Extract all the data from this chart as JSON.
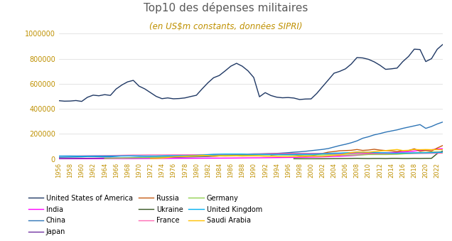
{
  "title": "Top10 des dépenses militaires",
  "subtitle": "(en US$m constants, données SIPRI)",
  "title_color": "#595959",
  "subtitle_color": "#BF9000",
  "years": [
    1956,
    1957,
    1958,
    1959,
    1960,
    1961,
    1962,
    1963,
    1964,
    1965,
    1966,
    1967,
    1968,
    1969,
    1970,
    1971,
    1972,
    1973,
    1974,
    1975,
    1976,
    1977,
    1978,
    1979,
    1980,
    1981,
    1982,
    1983,
    1984,
    1985,
    1986,
    1987,
    1988,
    1989,
    1990,
    1991,
    1992,
    1993,
    1994,
    1995,
    1996,
    1997,
    1998,
    1999,
    2000,
    2001,
    2002,
    2003,
    2004,
    2005,
    2006,
    2007,
    2008,
    2009,
    2010,
    2011,
    2012,
    2013,
    2014,
    2015,
    2016,
    2017,
    2018,
    2019,
    2020,
    2021,
    2022,
    2023
  ],
  "series": {
    "United States of America": {
      "color": "#1F3864",
      "data": [
        466000,
        462000,
        463000,
        467000,
        460000,
        493000,
        510000,
        505000,
        514000,
        508000,
        559000,
        591000,
        616000,
        628000,
        582000,
        560000,
        530000,
        500000,
        482000,
        488000,
        481000,
        483000,
        488000,
        499000,
        509000,
        560000,
        608000,
        649000,
        667000,
        703000,
        741000,
        764000,
        741000,
        704000,
        651000,
        497000,
        530000,
        507000,
        494000,
        489000,
        491000,
        487000,
        475000,
        479000,
        480000,
        524000,
        578000,
        631000,
        685000,
        700000,
        720000,
        758000,
        810000,
        807000,
        796000,
        776000,
        749000,
        716000,
        720000,
        726000,
        778000,
        819000,
        877000,
        874000,
        778000,
        801000,
        876000,
        916000
      ]
    },
    "India": {
      "color": "#FF00FF",
      "data": [
        2000,
        2000,
        2200,
        2300,
        2400,
        2500,
        2800,
        2800,
        3200,
        3500,
        3600,
        3900,
        4000,
        3900,
        4200,
        4300,
        4500,
        4700,
        5000,
        5200,
        5500,
        5800,
        6000,
        6200,
        6500,
        6800,
        7000,
        7200,
        7500,
        7800,
        8000,
        8500,
        9000,
        9500,
        9800,
        10000,
        10500,
        11000,
        11500,
        12000,
        12500,
        13000,
        14000,
        14500,
        15000,
        16000,
        17500,
        19000,
        21000,
        23000,
        25000,
        27000,
        30000,
        36000,
        40000,
        44000,
        46000,
        48000,
        51000,
        54000,
        57000,
        60000,
        64000,
        70000,
        72000,
        74000,
        80000,
        83000
      ]
    },
    "China": {
      "color": "#2E75B6",
      "data": [
        14000,
        15000,
        16000,
        17000,
        18000,
        20000,
        20000,
        19000,
        18000,
        18000,
        22000,
        26000,
        26000,
        24000,
        22000,
        22000,
        22000,
        23000,
        24000,
        24000,
        24000,
        24000,
        24000,
        26000,
        27000,
        27000,
        27000,
        28000,
        30000,
        32000,
        33000,
        35000,
        38000,
        40000,
        41000,
        41000,
        43000,
        44000,
        45000,
        48000,
        51000,
        55000,
        58000,
        62000,
        67000,
        72000,
        77000,
        84000,
        96000,
        108000,
        118000,
        130000,
        145000,
        166000,
        178000,
        193000,
        203000,
        215000,
        224000,
        233000,
        245000,
        255000,
        265000,
        275000,
        245000,
        260000,
        280000,
        296000
      ]
    },
    "Japan": {
      "color": "#7030A0",
      "data": [
        4000,
        4500,
        5000,
        5500,
        6000,
        6200,
        6500,
        7000,
        7500,
        8000,
        8500,
        9000,
        9500,
        10000,
        11000,
        11500,
        12000,
        13000,
        13500,
        14000,
        14500,
        15000,
        16000,
        17000,
        18000,
        19000,
        20000,
        22000,
        25000,
        27000,
        30000,
        32000,
        33000,
        34000,
        36000,
        38000,
        40000,
        42000,
        43000,
        44000,
        44000,
        44000,
        44000,
        44000,
        44000,
        44000,
        44000,
        44000,
        44000,
        44000,
        44000,
        44000,
        46000,
        47000,
        48000,
        48000,
        47000,
        47000,
        46000,
        46000,
        47000,
        47000,
        48000,
        48000,
        49000,
        54000,
        56000,
        56000
      ]
    },
    "Russia": {
      "color": "#C55A11",
      "data": [
        null,
        null,
        null,
        null,
        null,
        null,
        null,
        null,
        null,
        null,
        null,
        null,
        null,
        null,
        null,
        null,
        null,
        null,
        null,
        null,
        null,
        null,
        null,
        null,
        null,
        null,
        null,
        null,
        null,
        null,
        null,
        null,
        null,
        null,
        null,
        null,
        null,
        30000,
        35000,
        40000,
        38000,
        36000,
        25000,
        22000,
        25000,
        35000,
        45000,
        55000,
        60000,
        66000,
        68000,
        70000,
        76000,
        69000,
        72000,
        78000,
        72000,
        68000,
        65000,
        60000,
        68000,
        68000,
        82000,
        62000,
        68000,
        64000,
        88000,
        109000
      ]
    },
    "Ukraine": {
      "color": "#375623",
      "data": [
        null,
        null,
        null,
        null,
        null,
        null,
        null,
        null,
        null,
        null,
        null,
        null,
        null,
        null,
        null,
        null,
        null,
        null,
        null,
        null,
        null,
        null,
        null,
        null,
        null,
        null,
        null,
        null,
        null,
        null,
        null,
        null,
        null,
        null,
        null,
        null,
        null,
        null,
        null,
        null,
        null,
        3000,
        2500,
        2000,
        1900,
        2200,
        2600,
        3100,
        3800,
        4200,
        4500,
        5000,
        5800,
        4800,
        4200,
        4800,
        4900,
        4000,
        5800,
        5900,
        4600,
        4700,
        5800,
        5000,
        5800,
        6000,
        44000,
        65000
      ]
    },
    "France": {
      "color": "#FF69B4",
      "data": [
        24000,
        24500,
        25000,
        25000,
        26000,
        26500,
        27000,
        27500,
        28000,
        28500,
        29000,
        30000,
        31000,
        32000,
        32000,
        32500,
        33000,
        33000,
        33000,
        33500,
        34000,
        34000,
        34000,
        34500,
        34500,
        35000,
        35500,
        36000,
        37000,
        38000,
        38500,
        39000,
        39500,
        40000,
        41000,
        42000,
        42000,
        42000,
        42000,
        42500,
        43000,
        43000,
        43000,
        43000,
        42000,
        43000,
        43000,
        43500,
        44000,
        44000,
        44000,
        45000,
        45000,
        44000,
        44000,
        43500,
        43500,
        43000,
        43500,
        43500,
        44000,
        44500,
        44500,
        45000,
        45500,
        46000,
        46500,
        47000
      ]
    },
    "Germany": {
      "color": "#92D050",
      "data": [
        null,
        null,
        null,
        null,
        null,
        null,
        null,
        null,
        5000,
        6000,
        7000,
        8000,
        9000,
        10000,
        11000,
        12000,
        13000,
        14000,
        15000,
        16000,
        18000,
        19000,
        20000,
        21000,
        22000,
        23000,
        25000,
        26000,
        28000,
        29000,
        30000,
        30000,
        31000,
        32000,
        32000,
        33000,
        33000,
        33000,
        33000,
        32000,
        32000,
        32000,
        32000,
        32000,
        32000,
        33000,
        33000,
        34000,
        33500,
        33000,
        32500,
        32000,
        33000,
        33000,
        36000,
        36000,
        36000,
        36000,
        37000,
        38000,
        41000,
        44000,
        47000,
        49000,
        52000,
        56000,
        55000,
        52000
      ]
    },
    "United Kingdom": {
      "color": "#00B0F0",
      "data": [
        24000,
        24000,
        24000,
        23500,
        23000,
        23500,
        24000,
        24000,
        24000,
        24000,
        24000,
        24500,
        25000,
        25000,
        25000,
        24000,
        24000,
        24000,
        25000,
        26000,
        26000,
        27000,
        27000,
        28000,
        30000,
        33000,
        35000,
        38000,
        39000,
        40000,
        40000,
        40000,
        40000,
        38000,
        38000,
        38000,
        37000,
        36000,
        36000,
        36000,
        36000,
        36000,
        37000,
        37000,
        37000,
        39000,
        42000,
        45000,
        47000,
        48000,
        50000,
        52000,
        54000,
        55000,
        54000,
        53000,
        51000,
        50000,
        47000,
        47000,
        48000,
        48000,
        49000,
        50000,
        50000,
        51000,
        52000,
        55000
      ]
    },
    "Saudi Arabia": {
      "color": "#FFC000",
      "data": [
        null,
        null,
        null,
        null,
        null,
        null,
        null,
        null,
        null,
        null,
        null,
        null,
        null,
        null,
        null,
        null,
        3000,
        4000,
        8000,
        12000,
        18000,
        20000,
        22000,
        25000,
        26000,
        30000,
        28000,
        22000,
        25000,
        24000,
        25000,
        26000,
        24000,
        25000,
        25000,
        25000,
        22000,
        21000,
        20000,
        19000,
        19000,
        21000,
        21000,
        23000,
        23000,
        22000,
        22000,
        25000,
        29000,
        32000,
        42000,
        52000,
        57000,
        56000,
        54000,
        60000,
        64000,
        68000,
        72000,
        76000,
        68000,
        70000,
        76000,
        75000,
        76000,
        75000,
        75000,
        75000
      ]
    }
  },
  "legend_order": [
    "United States of America",
    "India",
    "China",
    "Japan",
    "Russia",
    "Ukraine",
    "France",
    "Germany",
    "United Kingdom",
    "Saudi Arabia"
  ],
  "yticks": [
    0,
    200000,
    400000,
    600000,
    800000,
    1000000
  ],
  "ylim": [
    0,
    1000000
  ],
  "xlim": [
    1956,
    2023
  ]
}
